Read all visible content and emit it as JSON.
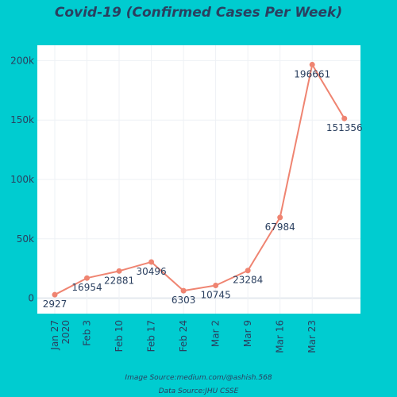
{
  "chart_data": {
    "type": "line",
    "title": "Covid-19 (Confirmed Cases Per Week)",
    "x": [
      "2020-01-27",
      "2020-02-03",
      "2020-02-10",
      "2020-02-17",
      "2020-02-24",
      "2020-03-02",
      "2020-03-09",
      "2020-03-16",
      "2020-03-23",
      "2020-03-30"
    ],
    "x_tick_labels": [
      {
        "date": "2020-01-27",
        "label": "Jan 27",
        "sub": "2020"
      },
      {
        "date": "2020-02-03",
        "label": "Feb 3"
      },
      {
        "date": "2020-02-10",
        "label": "Feb 10"
      },
      {
        "date": "2020-02-17",
        "label": "Feb 17"
      },
      {
        "date": "2020-02-24",
        "label": "Feb 24"
      },
      {
        "date": "2020-03-02",
        "label": "Mar 2"
      },
      {
        "date": "2020-03-09",
        "label": "Mar 9"
      },
      {
        "date": "2020-03-16",
        "label": "Mar 16"
      },
      {
        "date": "2020-03-23",
        "label": "Mar 23"
      }
    ],
    "series": [
      {
        "values": [
          2927,
          16954,
          22881,
          30496,
          6303,
          10745,
          23284,
          67984,
          196661,
          151356
        ],
        "data_labels": [
          "2927",
          "16954",
          "22881",
          "30496",
          "6303",
          "10745",
          "23284",
          "67984",
          "196661",
          "151356"
        ],
        "color": "#ef8471"
      }
    ],
    "ylim": [
      -13000,
      213000
    ],
    "y_ticks": [
      0,
      50000,
      100000,
      150000,
      200000
    ],
    "y_tick_labels": [
      "0",
      "50k",
      "100k",
      "150k",
      "200k"
    ],
    "grid": true,
    "plot_background": "#ffffff",
    "page_background": "#00ccd0"
  },
  "credits": {
    "image_source": "Image Source:medium.com/@ashish.568",
    "data_source": "Data Source:JHU CSSE"
  }
}
